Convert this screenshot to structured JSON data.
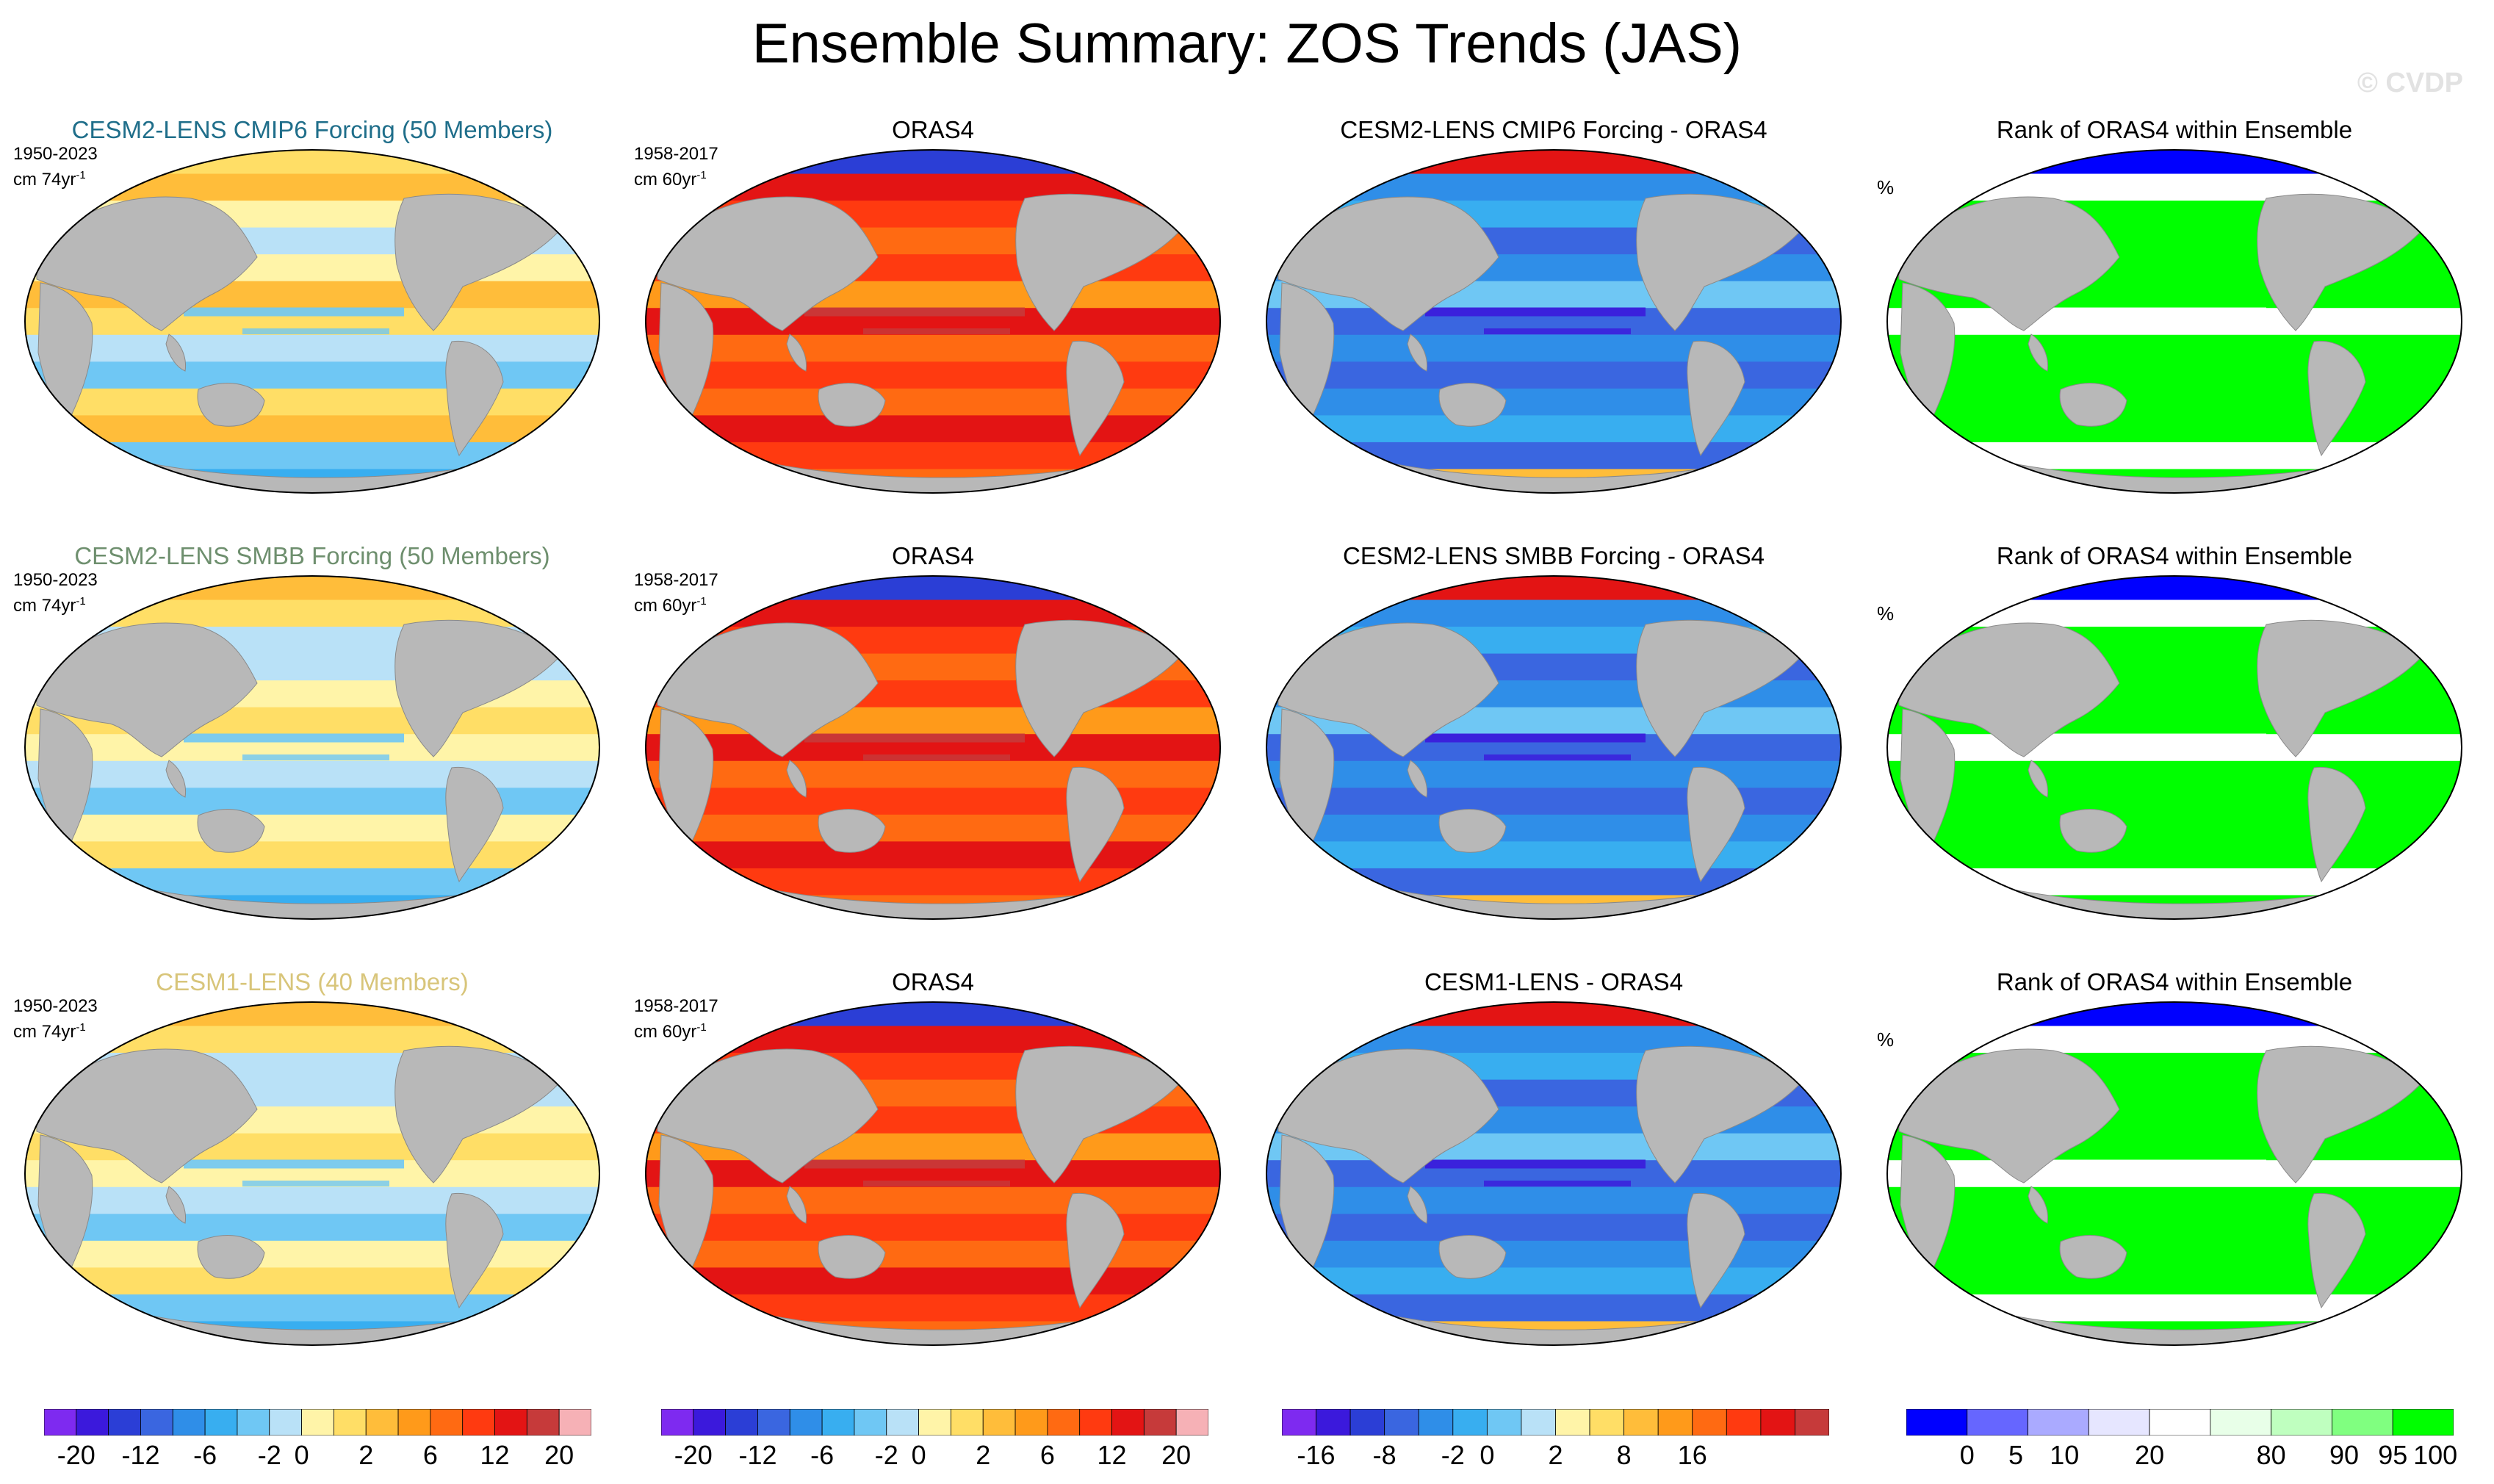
{
  "title": "Ensemble Summary: ZOS Trends (JAS)",
  "watermark": "© CVDP",
  "colors": {
    "trend": [
      "#7e2af0",
      "#3b19dc",
      "#2b3ed6",
      "#3a66e0",
      "#2f8ee8",
      "#38aef0",
      "#6fc7f4",
      "#b9e1f7",
      "#fff4a8",
      "#ffde66",
      "#ffbd3a",
      "#ff9a1a",
      "#ff6a12",
      "#ff3a10",
      "#e31414",
      "#c63a3a",
      "#f6b1b6"
    ],
    "diff": [
      "#7e2af0",
      "#3b19dc",
      "#2b3ed6",
      "#3a66e0",
      "#2f8ee8",
      "#38aef0",
      "#6fc7f4",
      "#b9e1f7",
      "#fff4a8",
      "#ffde66",
      "#ffbd3a",
      "#ff9a1a",
      "#ff6a12",
      "#ff3a10",
      "#e31414",
      "#c63a3a",
      "#f6b1b6"
    ],
    "rank": [
      "#0000ff",
      "#6666ff",
      "#aaaaff",
      "#e6e6ff",
      "#ffffff",
      "#e8ffe8",
      "#bfffbf",
      "#80ff80",
      "#00ff00"
    ],
    "land": "#b8b8b8"
  },
  "rows": [
    {
      "ensemble": {
        "title": "CESM2-LENS CMIP6 Forcing (50 Members)",
        "color": "#1f6e8a",
        "period": "1950-2023",
        "units_base": "cm 74yr",
        "units_exp": "-1",
        "style": "ens-warm"
      },
      "obs": {
        "title": "ORAS4",
        "period": "1958-2017",
        "units_base": "cm 60yr",
        "units_exp": "-1"
      },
      "diff": {
        "title": "CESM2-LENS CMIP6 Forcing - ORAS4"
      },
      "rank": {
        "title": "Rank of ORAS4 within Ensemble",
        "pct": "%"
      }
    },
    {
      "ensemble": {
        "title": "CESM2-LENS SMBB Forcing (50 Members)",
        "color": "#6e8f6e",
        "period": "1950-2023",
        "units_base": "cm 74yr",
        "units_exp": "-1",
        "style": "ens-cool"
      },
      "obs": {
        "title": "ORAS4",
        "period": "1958-2017",
        "units_base": "cm 60yr",
        "units_exp": "-1"
      },
      "diff": {
        "title": "CESM2-LENS SMBB Forcing - ORAS4"
      },
      "rank": {
        "title": "Rank of ORAS4 within Ensemble",
        "pct": "%"
      }
    },
    {
      "ensemble": {
        "title": "CESM1-LENS (40 Members)",
        "color": "#d8c57a",
        "period": "1950-2023",
        "units_base": "cm 74yr",
        "units_exp": "-1",
        "style": "ens-cool"
      },
      "obs": {
        "title": "ORAS4",
        "period": "1958-2017",
        "units_base": "cm 60yr",
        "units_exp": "-1"
      },
      "diff": {
        "title": "CESM1-LENS - ORAS4"
      },
      "rank": {
        "title": "Rank of ORAS4 within Ensemble",
        "pct": "%"
      }
    }
  ],
  "chart_data": {
    "type": "heatmap",
    "title": "Ensemble Summary: ZOS Trends (JAS)",
    "projection": "Robinson, Pacific-centered global maps",
    "colorbars": [
      {
        "name": "ensemble trend",
        "labels": [
          "-20",
          "-12",
          "-6",
          "-2",
          "0",
          "2",
          "6",
          "12",
          "20"
        ],
        "tick_boxes": [
          1,
          3,
          5,
          7,
          8,
          10,
          12,
          14,
          16
        ],
        "n_boxes": 17
      },
      {
        "name": "observed trend",
        "labels": [
          "-20",
          "-12",
          "-6",
          "-2",
          "0",
          "2",
          "6",
          "12",
          "20"
        ],
        "tick_boxes": [
          1,
          3,
          5,
          7,
          8,
          10,
          12,
          14,
          16
        ],
        "n_boxes": 17
      },
      {
        "name": "difference",
        "labels": [
          "-16",
          "-8",
          "-2",
          "0",
          "2",
          "8",
          "16"
        ],
        "tick_boxes": [
          1,
          3,
          5,
          6,
          8,
          10,
          12
        ],
        "n_boxes": 16
      },
      {
        "name": "rank",
        "labels": [
          "0",
          "5",
          "10",
          "20",
          "80",
          "90",
          "95",
          "100"
        ],
        "tick_boxes": [
          1,
          1.8,
          2.6,
          4,
          6,
          7.2,
          8,
          8.7
        ],
        "n_boxes": 9
      }
    ]
  }
}
